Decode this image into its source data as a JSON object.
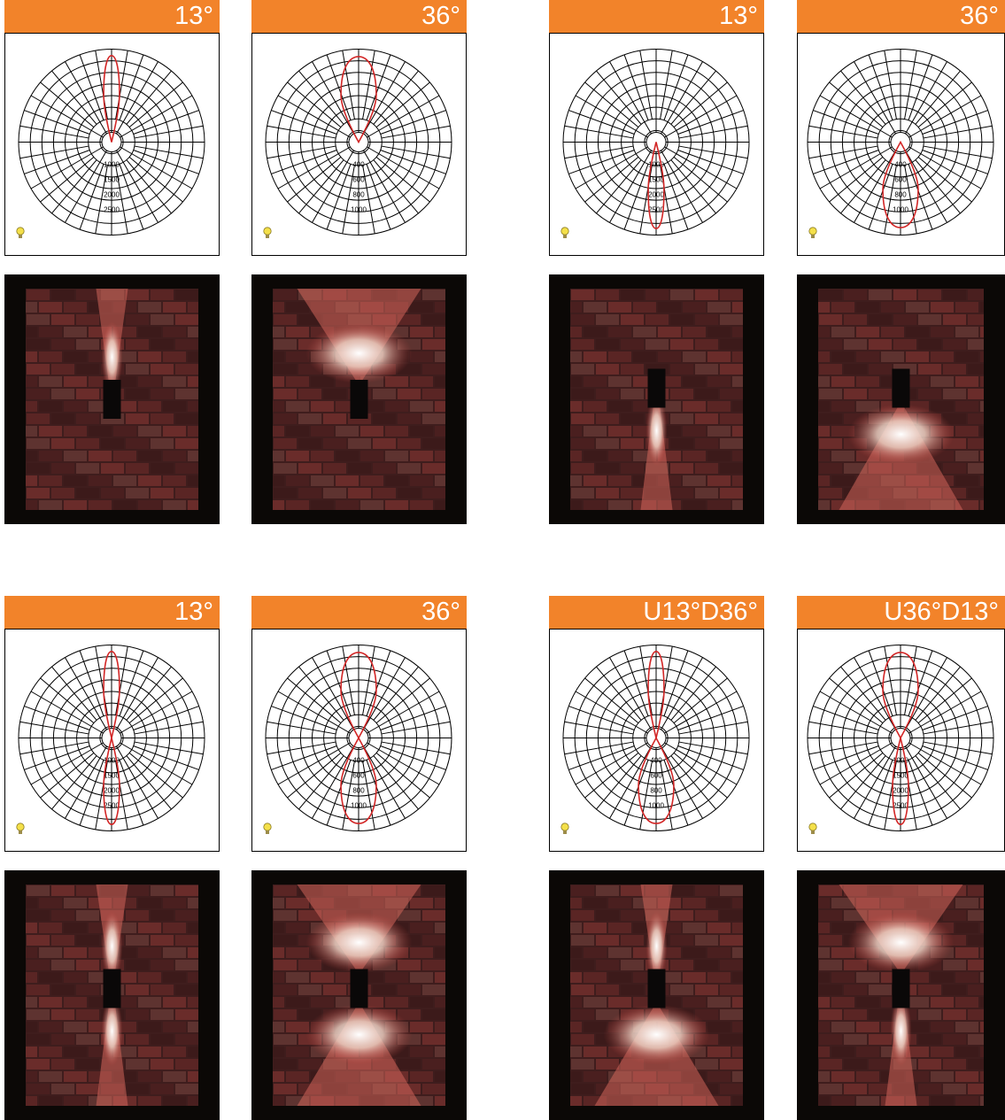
{
  "colors": {
    "header_bg": "#f2832a",
    "curve": "#d22626",
    "grid": "#000000",
    "bulb": "#f4e04a"
  },
  "icon": "light-bulb-icon",
  "panels": [
    {
      "label": "13°",
      "ticks": [
        "1000",
        "1500",
        "2000",
        "2500"
      ],
      "up_deg": 13,
      "down_deg": null
    },
    {
      "label": "36°",
      "ticks": [
        "400",
        "600",
        "800",
        "1000"
      ],
      "up_deg": 36,
      "down_deg": null
    },
    {
      "label": "13°",
      "ticks": [
        "1000",
        "1500",
        "2000",
        "2500"
      ],
      "up_deg": null,
      "down_deg": 13
    },
    {
      "label": "36°",
      "ticks": [
        "400",
        "600",
        "800",
        "1000"
      ],
      "up_deg": null,
      "down_deg": 36
    },
    {
      "label": "13°",
      "ticks": [
        "1000",
        "1500",
        "2000",
        "2500"
      ],
      "up_deg": 13,
      "down_deg": 13
    },
    {
      "label": "36°",
      "ticks": [
        "400",
        "600",
        "800",
        "1000"
      ],
      "up_deg": 36,
      "down_deg": 36
    },
    {
      "label": "U13°D36°",
      "ticks": [
        "400",
        "600",
        "800",
        "1000"
      ],
      "up_deg": 13,
      "down_deg": 36
    },
    {
      "label": "U36°D13°",
      "ticks": [
        "1000",
        "1500",
        "2000",
        "2500"
      ],
      "up_deg": 36,
      "down_deg": 13
    }
  ]
}
